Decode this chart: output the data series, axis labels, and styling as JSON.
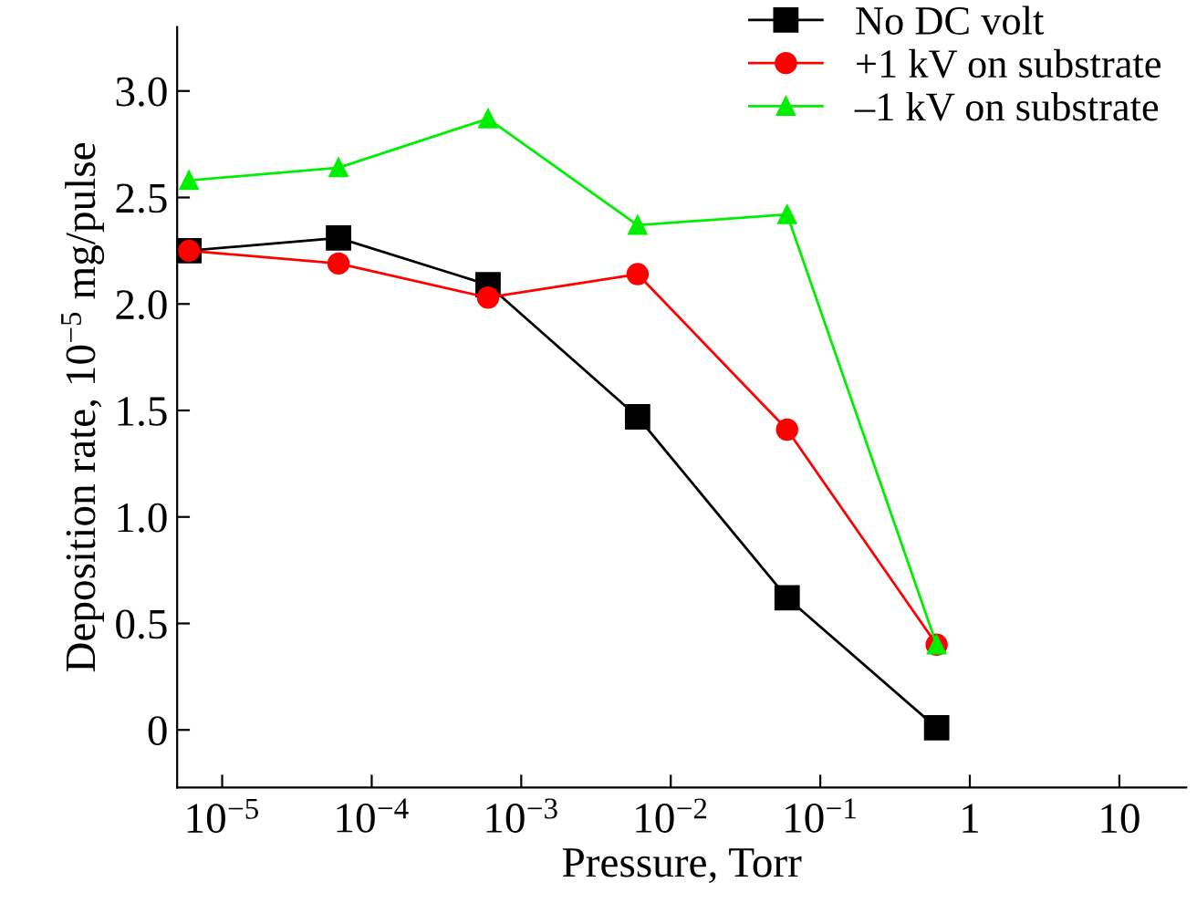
{
  "chart_data": {
    "type": "line",
    "xlabel": "Pressure, Torr",
    "ylabel": "Deposition rate, 10$^{−5}$ mg/pulse",
    "log": "x",
    "x": [
      6e-06,
      6e-05,
      0.0006,
      0.006,
      0.06,
      0.6
    ],
    "xlim": [
      5e-06,
      28
    ],
    "ylim": [
      -0.27,
      3.3
    ],
    "xticks": [
      {
        "value": 1e-05,
        "label": "10$^{−5}$"
      },
      {
        "value": 0.0001,
        "label": "10$^{−4}$"
      },
      {
        "value": 0.001,
        "label": "10$^{−3}$"
      },
      {
        "value": 0.01,
        "label": "10$^{−2}$"
      },
      {
        "value": 0.1,
        "label": "10$^{−1}$"
      },
      1,
      10
    ],
    "yticks": [
      0,
      {
        "value": 0.5,
        "label": "0.5"
      },
      {
        "value": 1,
        "label": "1.0"
      },
      {
        "value": 1.5,
        "label": "1.5"
      },
      {
        "value": 2,
        "label": "2.0"
      },
      {
        "value": 2.5,
        "label": "2.5"
      },
      {
        "value": 3,
        "label": "3.0"
      }
    ],
    "grid": false,
    "legend": "top right",
    "line_style": "solid",
    "series": [
      {
        "name": "No DC volt",
        "color": "#000000",
        "marker": "square",
        "values": [
          2.25,
          2.31,
          2.09,
          1.47,
          0.62,
          0.01
        ]
      },
      {
        "name": "+1 kV on substrate",
        "color": "#ff0000",
        "marker": "circle",
        "values": [
          2.25,
          2.19,
          2.03,
          2.14,
          1.41,
          0.4
        ]
      },
      {
        "name": "–1 kV on substrate",
        "color": "#00ee00",
        "marker": "triangle",
        "values": [
          2.58,
          2.64,
          2.87,
          2.37,
          2.42,
          0.4
        ]
      }
    ]
  }
}
